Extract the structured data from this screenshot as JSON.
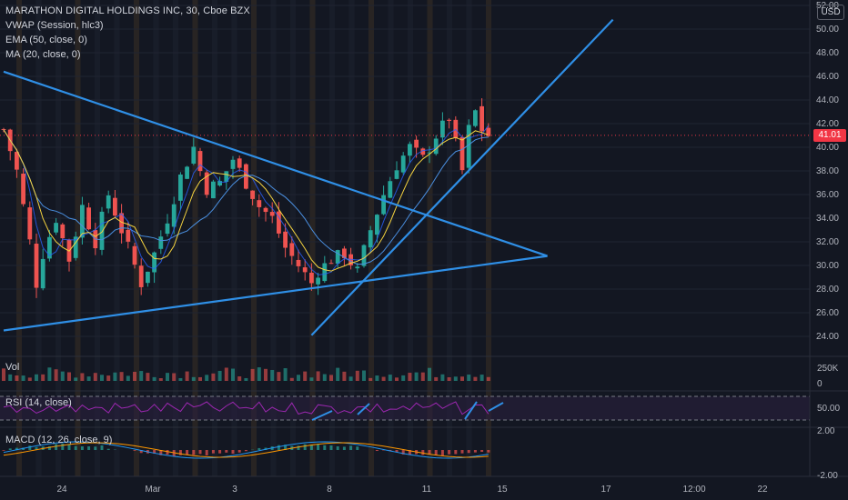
{
  "header": {
    "title": "MARATHON DIGITAL HOLDINGS INC, 30, Cboe BZX",
    "indicators": [
      "VWAP (Session, hlc3)",
      "EMA (50, close, 0)",
      "MA (20, close, 0)"
    ],
    "currency": "USD"
  },
  "colors": {
    "background": "#131722",
    "up": "#26a69a",
    "down": "#ef5350",
    "trendline": "#2f8fe6",
    "vwap": "#2962ff",
    "ema": "#4a8fe0",
    "ma": "#f5d33f",
    "rsi": "#9c27b0",
    "macd": "#2196f3",
    "signal": "#ff9800",
    "last_price": "#f23645"
  },
  "panes": {
    "vol_label": "Vol",
    "rsi_label": "RSI (14, close)",
    "macd_label": "MACD (12, 26, close, 9)"
  },
  "chart_data": {
    "type": "candlestick",
    "x_ticks": [
      "24",
      "Mar",
      "3",
      "8",
      "11",
      "15",
      "17",
      "12:00",
      "22"
    ],
    "y_ticks": [
      "24.00",
      "26.00",
      "28.00",
      "30.00",
      "32.00",
      "34.00",
      "36.00",
      "38.00",
      "40.00",
      "42.00",
      "44.00",
      "46.00",
      "48.00",
      "50.00",
      "52.00"
    ],
    "ylim": [
      24,
      52
    ],
    "last_price": "41.01",
    "last_price_value": 41.01,
    "vol_ticks": [
      "250K",
      "0"
    ],
    "rsi_ticks": [
      "50.00"
    ],
    "macd_ticks": [
      "2.00",
      "-2.00"
    ],
    "trendlines_price_units": [
      {
        "name": "upper-converging",
        "points": [
          [
            0,
            46.4
          ],
          [
            83,
            30.8
          ]
        ]
      },
      {
        "name": "lower-converging",
        "points": [
          [
            0,
            24.5
          ],
          [
            83,
            30.8
          ]
        ]
      },
      {
        "name": "rising-support",
        "points": [
          [
            47,
            24.1
          ],
          [
            93,
            50.8
          ]
        ]
      }
    ],
    "close_path": [
      [
        0,
        41.5
      ],
      [
        2,
        38
      ],
      [
        4,
        32
      ],
      [
        5,
        28.5
      ],
      [
        6,
        31
      ],
      [
        8,
        34
      ],
      [
        10,
        30.5
      ],
      [
        12,
        35
      ],
      [
        14,
        32
      ],
      [
        16,
        36
      ],
      [
        18,
        33
      ],
      [
        20,
        30
      ],
      [
        21,
        28.5
      ],
      [
        23,
        31
      ],
      [
        25,
        34
      ],
      [
        27,
        37.5
      ],
      [
        29,
        40
      ],
      [
        30,
        38
      ],
      [
        31,
        36.5
      ],
      [
        33,
        37
      ],
      [
        35,
        39
      ],
      [
        37,
        37
      ],
      [
        39,
        35
      ],
      [
        41,
        34
      ],
      [
        43,
        31.5
      ],
      [
        45,
        30
      ],
      [
        47,
        28.5
      ],
      [
        48,
        29.5
      ],
      [
        50,
        30.5
      ],
      [
        52,
        31
      ],
      [
        54,
        29.5
      ],
      [
        56,
        33
      ],
      [
        58,
        36
      ],
      [
        60,
        38.5
      ],
      [
        62,
        40
      ],
      [
        64,
        39
      ],
      [
        66,
        41
      ],
      [
        68,
        42.5
      ],
      [
        70,
        38
      ],
      [
        71,
        41.5
      ],
      [
        72,
        43
      ],
      [
        73,
        41.5
      ],
      [
        74,
        41
      ]
    ],
    "x_units": "candle index (30-minute bars)"
  }
}
